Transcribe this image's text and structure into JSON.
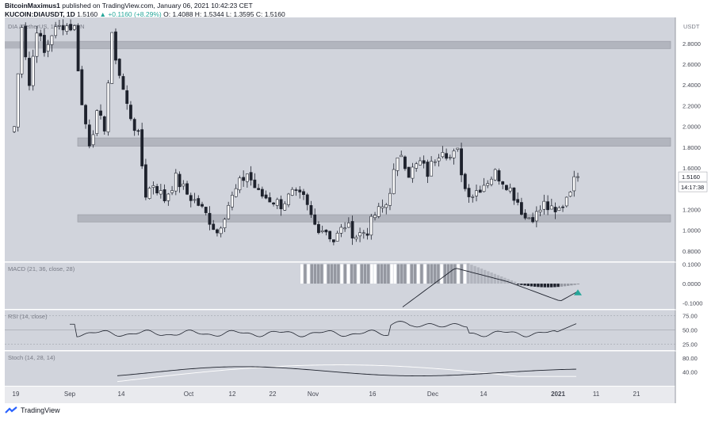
{
  "header": {
    "author": "BitcoinMaximus1",
    "published_text": "published on TradingView.com, January 06, 2021 10:42:23 CET",
    "symbol": "KUCOIN:DIAUSDT, 1D",
    "last": "1.5160",
    "change": "+0.1160 (+8.29%)",
    "ohlc": "O: 1.4088 H: 1.5344 L: 1.3595 C: 1.5160"
  },
  "footer": {
    "brand": "TradingView",
    "logo_icon": "tradingview-logo-icon"
  },
  "chart_data": [
    {
      "type": "candlestick",
      "title": "DIA / TetherUS, 1D, KUCOIN",
      "currency": "USDT",
      "y_ticks": [
        "2.8000",
        "2.6000",
        "2.4000",
        "2.2000",
        "2.0000",
        "1.8000",
        "1.6000",
        "1.4000",
        "1.2000",
        "1.0000",
        "0.8000"
      ],
      "ylim": [
        0.7,
        3.05
      ],
      "x_ticks": [
        "19",
        "Sep",
        "14",
        "Oct",
        "12",
        "22",
        "Nov",
        "16",
        "Dec",
        "14",
        "2021",
        "11",
        "21"
      ],
      "price_label": "1.5160",
      "countdown_label": "14:17:38",
      "zones": [
        [
          2.75,
          2.82
        ],
        [
          1.81,
          1.89
        ],
        [
          1.08,
          1.15
        ]
      ],
      "colors": {
        "bull": "#ffffff",
        "bear": "#1e222d",
        "zone": "#b2b5be",
        "bg": "#d1d4dc"
      }
    },
    {
      "type": "histogram+line",
      "title": "MACD (21, 36, close, 28)",
      "y_ticks": [
        "0.1000",
        "0.0000",
        "-0.1000"
      ],
      "ylim": [
        -0.13,
        0.11
      ]
    },
    {
      "type": "line",
      "title": "RSI (14, close)",
      "y_ticks": [
        "75.00",
        "50.00",
        "25.00"
      ],
      "ylim": [
        15,
        85
      ]
    },
    {
      "type": "line",
      "title": "Stoch (14, 28, 14)",
      "y_ticks": [
        "80.00",
        "40.00"
      ],
      "ylim": [
        0,
        100
      ]
    }
  ]
}
